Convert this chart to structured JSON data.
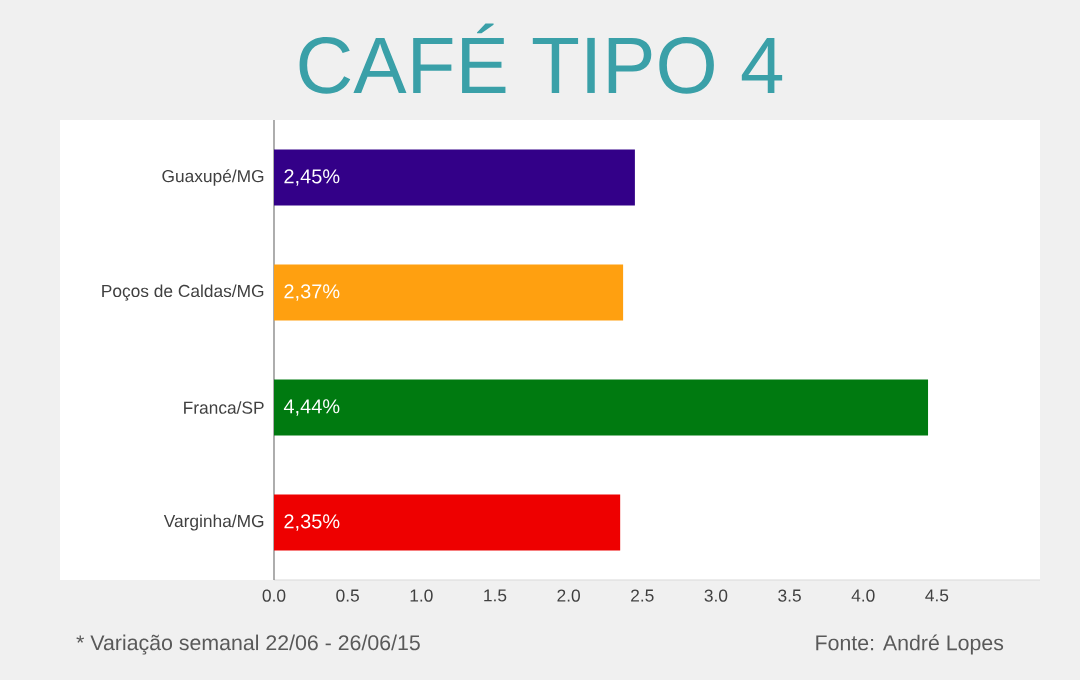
{
  "chart_data": {
    "type": "bar",
    "orientation": "horizontal",
    "title": "CAFÉ TIPO 4",
    "categories": [
      "Guaxupé/MG",
      "Poços de Caldas/MG",
      "Franca/SP",
      "Varginha/MG"
    ],
    "values": [
      2.45,
      2.37,
      4.44,
      2.35
    ],
    "colors": [
      "#330088",
      "#ffa010",
      "#007a10",
      "#ee0000"
    ],
    "value_labels": [
      "2,45%",
      "2,37%",
      "4,44%",
      "2,35%"
    ],
    "xlim": [
      0,
      5.2
    ],
    "xticks": [
      {
        "value": 0,
        "label": "0.0"
      },
      0.5,
      {
        "value": 1,
        "label": "1.0"
      },
      1.5,
      {
        "value": 2,
        "label": "2.0"
      },
      2.5,
      {
        "value": 3,
        "label": "3.0"
      },
      3.5,
      {
        "value": 4,
        "label": "4.0"
      },
      4.5
    ],
    "grid": false,
    "annotations": [
      "* Variação semanal 22/06 - 26/06/15",
      "Fonte: André Lopes"
    ]
  }
}
